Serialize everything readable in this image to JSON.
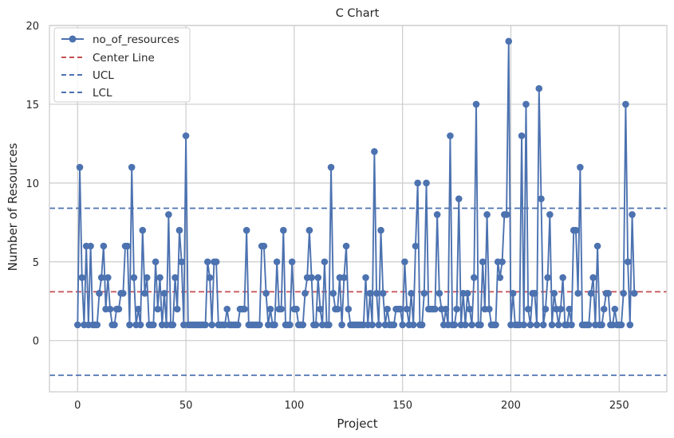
{
  "chart_data": {
    "type": "line",
    "title": "C Chart",
    "xlabel": "Project",
    "ylabel": "Number of Resources",
    "xlim": [
      -13,
      272
    ],
    "ylim": [
      -3.25,
      20
    ],
    "x_ticks": [
      0,
      50,
      100,
      150,
      200,
      250
    ],
    "y_ticks": [
      0,
      5,
      10,
      15,
      20
    ],
    "grid": true,
    "legend_position": "top-left",
    "series": [
      {
        "name": "no_of_resources",
        "color": "#4c72b0",
        "marker": "circle",
        "values": [
          1,
          11,
          4,
          1,
          6,
          1,
          6,
          1,
          1,
          1,
          3,
          4,
          6,
          2,
          4,
          2,
          1,
          1,
          2,
          2,
          3,
          3,
          6,
          6,
          1,
          11,
          4,
          1,
          2,
          1,
          7,
          3,
          4,
          1,
          1,
          1,
          5,
          2,
          4,
          1,
          3,
          1,
          8,
          1,
          1,
          4,
          2,
          7,
          5,
          1,
          13,
          1,
          1,
          1,
          1,
          1,
          1,
          1,
          1,
          1,
          5,
          4,
          1,
          5,
          5,
          1,
          1,
          1,
          1,
          2,
          1,
          1,
          1,
          1,
          1,
          2,
          2,
          2,
          7,
          1,
          1,
          1,
          1,
          1,
          1,
          6,
          6,
          3,
          1,
          2,
          1,
          1,
          5,
          2,
          2,
          7,
          1,
          1,
          1,
          5,
          2,
          2,
          1,
          1,
          1,
          3,
          4,
          7,
          4,
          1,
          1,
          4,
          2,
          1,
          5,
          1,
          1,
          11,
          3,
          2,
          2,
          4,
          1,
          4,
          6,
          2,
          1,
          1,
          1,
          1,
          1,
          1,
          1,
          4,
          1,
          3,
          1,
          12,
          3,
          1,
          7,
          3,
          1,
          2,
          1,
          1,
          1,
          2,
          2,
          2,
          1,
          5,
          2,
          1,
          3,
          1,
          6,
          10,
          1,
          1,
          3,
          10,
          2,
          2,
          2,
          2,
          8,
          3,
          2,
          1,
          2,
          1,
          13,
          1,
          1,
          2,
          9,
          1,
          3,
          1,
          3,
          2,
          1,
          4,
          15,
          1,
          1,
          5,
          2,
          8,
          2,
          1,
          1,
          1,
          5,
          4,
          5,
          8,
          8,
          19,
          1,
          3,
          1,
          1,
          1,
          13,
          1,
          15,
          2,
          1,
          3,
          3,
          1,
          16,
          9,
          1,
          2,
          4,
          8,
          1,
          3,
          2,
          1,
          2,
          4,
          1,
          1,
          2,
          1,
          7,
          7,
          3,
          11,
          1,
          1,
          1,
          1,
          3,
          4,
          1,
          6,
          1,
          1,
          2,
          3,
          3,
          1,
          1,
          2,
          1,
          1,
          1,
          3,
          15,
          5,
          1,
          8,
          3
        ]
      }
    ],
    "reference_lines": [
      {
        "name": "Center Line",
        "value": 3.1,
        "color": "#c44e52",
        "style": "dashed"
      },
      {
        "name": "UCL",
        "value": 8.4,
        "color": "#4c72b0",
        "style": "dashed"
      },
      {
        "name": "LCL",
        "value": -2.2,
        "color": "#4c72b0",
        "style": "dashed"
      }
    ]
  }
}
